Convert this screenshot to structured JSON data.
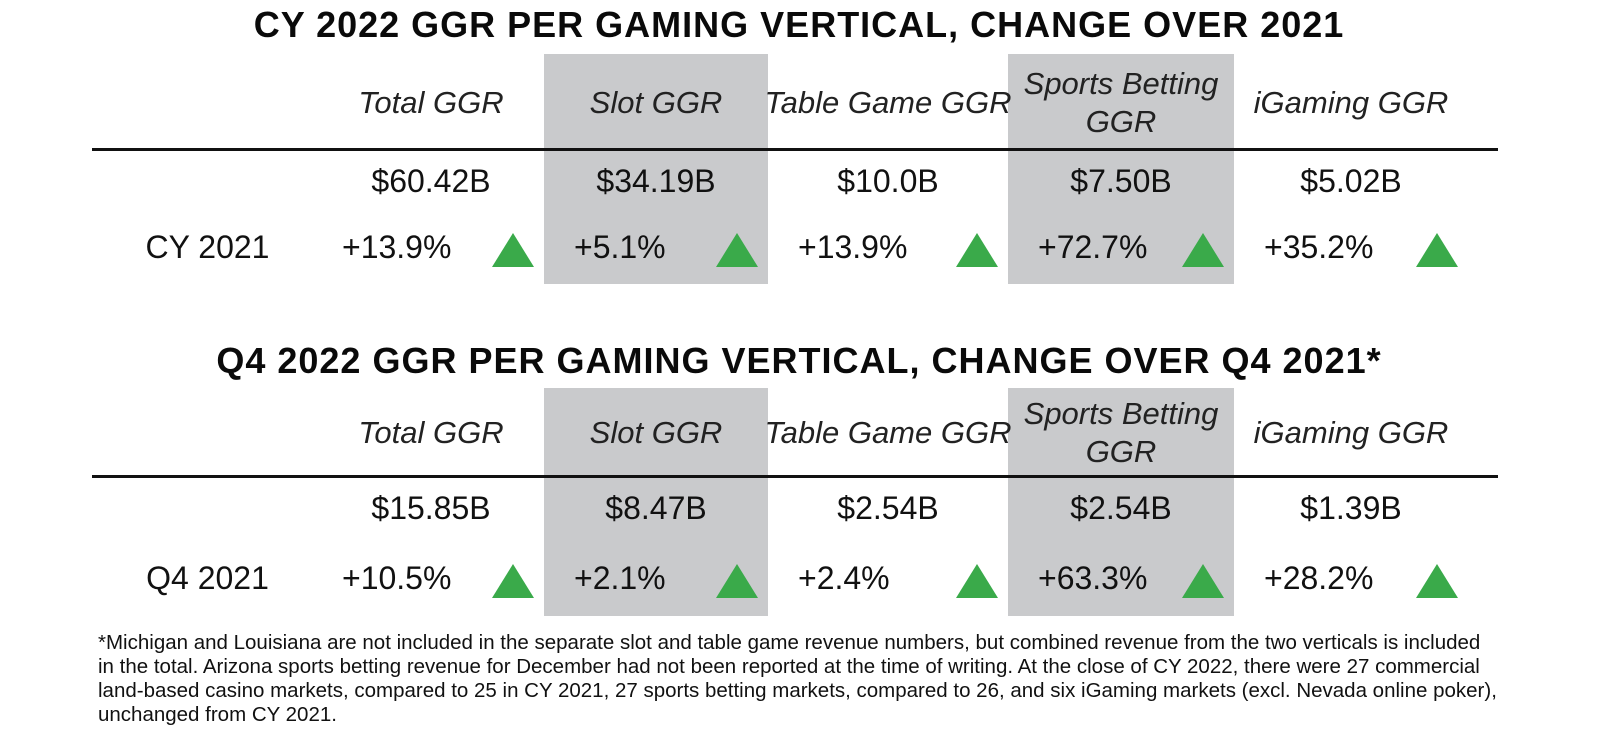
{
  "chart_data": [
    {
      "type": "table",
      "title": "CY 2022 GGR PER GAMING VERTICAL, CHANGE OVER 2021",
      "columns": [
        "Total GGR",
        "Slot GGR",
        "Table Game GGR",
        "Sports Betting GGR",
        "iGaming GGR"
      ],
      "totals": [
        "$60.42B",
        "$34.19B",
        "$10.0B",
        "$7.50B",
        "$5.02B"
      ],
      "comparison_label": "CY 2021",
      "changes": [
        "+13.9%",
        "+5.1%",
        "+13.9%",
        "+72.7%",
        "+35.2%"
      ],
      "change_direction": [
        "up",
        "up",
        "up",
        "up",
        "up"
      ]
    },
    {
      "type": "table",
      "title": "Q4 2022 GGR PER GAMING VERTICAL, CHANGE OVER Q4 2021*",
      "columns": [
        "Total GGR",
        "Slot GGR",
        "Table Game GGR",
        "Sports Betting GGR",
        "iGaming GGR"
      ],
      "totals": [
        "$15.85B",
        "$8.47B",
        "$2.54B",
        "$2.54B",
        "$1.39B"
      ],
      "comparison_label": "Q4 2021",
      "changes": [
        "+10.5%",
        "+2.1%",
        "+2.4%",
        "+63.3%",
        "+28.2%"
      ],
      "change_direction": [
        "up",
        "up",
        "up",
        "up",
        "up"
      ]
    }
  ],
  "footnote": "*Michigan and Louisiana are not included in the separate slot and table game revenue numbers, but combined revenue from the two verticals is included in the total. Arizona sports betting revenue for December had not been reported at the time of writing. At the close of CY 2022, there were 27 commercial land-based casino markets, compared to 25 in CY 2021, 27 sports betting markets, compared to 26, and six iGaming markets (excl. Nevada online poker), unchanged from CY 2021.",
  "colors": {
    "shade": "#c9cacc",
    "up_triangle": "#3aaa4a",
    "rule": "#111111"
  }
}
